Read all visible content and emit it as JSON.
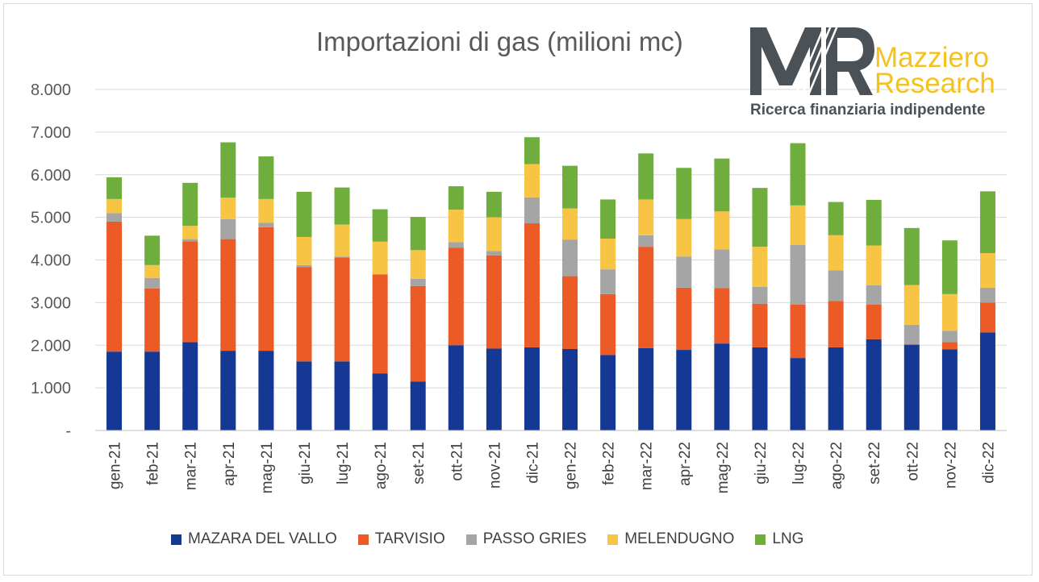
{
  "chart_data": {
    "type": "bar",
    "stacked": true,
    "title": "Importazioni di gas (milioni mc)",
    "xlabel": "",
    "ylabel": "",
    "ylim": [
      0,
      8000
    ],
    "yticks": [
      0,
      1000,
      2000,
      3000,
      4000,
      5000,
      6000,
      7000,
      8000
    ],
    "ytick_labels": [
      "-",
      "1.000",
      "2.000",
      "3.000",
      "4.000",
      "5.000",
      "6.000",
      "7.000",
      "8.000"
    ],
    "grid": true,
    "legend_position": "bottom",
    "categories": [
      "gen-21",
      "feb-21",
      "mar-21",
      "apr-21",
      "mag-21",
      "giu-21",
      "lug-21",
      "ago-21",
      "set-21",
      "ott-21",
      "nov-21",
      "dic-21",
      "gen-22",
      "feb-22",
      "mar-22",
      "apr-22",
      "mag-22",
      "giu-22",
      "lug-22",
      "ago-22",
      "set-22",
      "ott-22",
      "nov-22",
      "dic-22"
    ],
    "series": [
      {
        "name": "MAZARA DEL VALLO",
        "color": "#143894",
        "values": [
          1850,
          1850,
          2070,
          1870,
          1870,
          1620,
          1620,
          1340,
          1150,
          2000,
          1920,
          1950,
          1910,
          1770,
          1930,
          1890,
          2040,
          1950,
          1700,
          1950,
          2140,
          2010,
          1900,
          2300
        ]
      },
      {
        "name": "TARVISIO",
        "color": "#ec5a26",
        "values": [
          3050,
          1480,
          2370,
          2620,
          2900,
          2210,
          2440,
          2320,
          2240,
          2290,
          2190,
          2910,
          1710,
          1430,
          2380,
          1460,
          1300,
          1020,
          1250,
          1090,
          810,
          20,
          170,
          700
        ]
      },
      {
        "name": "PASSO GRIES",
        "color": "#a5a5a5",
        "values": [
          200,
          250,
          50,
          470,
          100,
          50,
          20,
          0,
          170,
          130,
          100,
          610,
          860,
          580,
          270,
          730,
          910,
          400,
          1400,
          720,
          460,
          450,
          270,
          350
        ]
      },
      {
        "name": "MELENDUGNO",
        "color": "#f8c443",
        "values": [
          330,
          300,
          310,
          500,
          560,
          660,
          750,
          770,
          670,
          760,
          790,
          780,
          730,
          720,
          840,
          880,
          890,
          940,
          930,
          820,
          930,
          930,
          860,
          810
        ]
      },
      {
        "name": "LNG",
        "color": "#6fad3c",
        "values": [
          510,
          690,
          1010,
          1300,
          1000,
          1060,
          870,
          760,
          780,
          550,
          600,
          630,
          1000,
          920,
          1080,
          1200,
          1240,
          1380,
          1460,
          780,
          1070,
          1340,
          1260,
          1450
        ]
      }
    ]
  },
  "logo": {
    "monogram": "MR",
    "name_line1": "Mazziero",
    "name_line2": "Research",
    "tagline": "Ricerca finanziaria indipendente",
    "colors": {
      "gray": "#4a5157",
      "yellow": "#f5c21b"
    }
  }
}
